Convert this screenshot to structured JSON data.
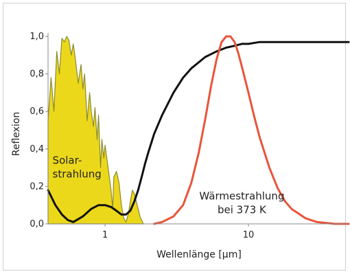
{
  "chart_data": {
    "type": "line",
    "xlabel": "Wellenlänge [μm]",
    "ylabel": "Reflexion",
    "x_scale": "log",
    "xlim": [
      0.4,
      50
    ],
    "ylim": [
      0,
      1.0
    ],
    "grid": false,
    "x_ticks": [
      {
        "value": 1,
        "label": "1"
      },
      {
        "value": 10,
        "label": "10"
      }
    ],
    "y_ticks": [
      {
        "value": 0.0,
        "label": "0,0"
      },
      {
        "value": 0.2,
        "label": "0,2"
      },
      {
        "value": 0.4,
        "label": "0,4"
      },
      {
        "value": 0.6,
        "label": "0,6"
      },
      {
        "value": 0.8,
        "label": "0,8"
      },
      {
        "value": 1.0,
        "label": "1,0"
      }
    ],
    "annotations": [
      {
        "lines": [
          "Solar-",
          "strahlung"
        ],
        "x": 0.43,
        "y": 0.32
      },
      {
        "lines": [
          "Wärmestrahlung",
          "bei 373 K"
        ],
        "x": 9.0,
        "y": 0.13
      }
    ],
    "series": [
      {
        "role": "solar",
        "fill": "#ecd81a",
        "stroke": "#8a8a30",
        "x": [
          0.4,
          0.42,
          0.44,
          0.46,
          0.48,
          0.5,
          0.52,
          0.54,
          0.56,
          0.58,
          0.6,
          0.62,
          0.65,
          0.68,
          0.7,
          0.72,
          0.75,
          0.78,
          0.8,
          0.83,
          0.85,
          0.88,
          0.9,
          0.93,
          0.95,
          0.98,
          1.0,
          1.05,
          1.1,
          1.13,
          1.15,
          1.2,
          1.25,
          1.3,
          1.35,
          1.4,
          1.45,
          1.5,
          1.55,
          1.6,
          1.65,
          1.7,
          1.75,
          1.8,
          1.85
        ],
        "values": [
          0.55,
          0.78,
          0.6,
          0.92,
          0.8,
          0.99,
          0.97,
          1.0,
          0.98,
          0.9,
          0.96,
          0.88,
          0.75,
          0.85,
          0.72,
          0.8,
          0.55,
          0.7,
          0.6,
          0.52,
          0.62,
          0.45,
          0.58,
          0.3,
          0.45,
          0.35,
          0.42,
          0.3,
          0.18,
          0.08,
          0.25,
          0.28,
          0.22,
          0.1,
          0.03,
          0.01,
          0.05,
          0.12,
          0.18,
          0.16,
          0.12,
          0.08,
          0.04,
          0.02,
          0.0
        ]
      },
      {
        "role": "reflexion",
        "color": "#111111",
        "x": [
          0.4,
          0.45,
          0.5,
          0.55,
          0.6,
          0.7,
          0.8,
          0.9,
          1.0,
          1.1,
          1.2,
          1.3,
          1.4,
          1.5,
          1.6,
          1.7,
          1.8,
          1.9,
          2.0,
          2.2,
          2.5,
          3.0,
          3.5,
          4.0,
          5.0,
          6.0,
          7.0,
          8.0,
          9.0,
          10.0,
          12.0,
          15.0,
          20.0,
          30.0,
          50.0
        ],
        "values": [
          0.18,
          0.1,
          0.05,
          0.02,
          0.01,
          0.04,
          0.08,
          0.1,
          0.1,
          0.09,
          0.07,
          0.05,
          0.05,
          0.07,
          0.12,
          0.18,
          0.25,
          0.32,
          0.38,
          0.48,
          0.58,
          0.7,
          0.78,
          0.83,
          0.89,
          0.92,
          0.94,
          0.95,
          0.96,
          0.96,
          0.97,
          0.97,
          0.97,
          0.97,
          0.97
        ]
      },
      {
        "role": "waerme",
        "color": "#e8543a",
        "x": [
          2.2,
          2.5,
          3.0,
          3.5,
          4.0,
          4.5,
          5.0,
          5.5,
          6.0,
          6.5,
          7.0,
          7.5,
          8.0,
          8.5,
          9.0,
          10.0,
          11.0,
          12.0,
          14.0,
          16.0,
          18.0,
          20.0,
          25.0,
          30.0,
          40.0,
          50.0
        ],
        "values": [
          0.0,
          0.01,
          0.04,
          0.1,
          0.22,
          0.38,
          0.56,
          0.74,
          0.88,
          0.97,
          1.0,
          1.0,
          0.97,
          0.91,
          0.84,
          0.7,
          0.57,
          0.46,
          0.3,
          0.19,
          0.12,
          0.08,
          0.03,
          0.01,
          0.0,
          0.0
        ]
      }
    ]
  }
}
